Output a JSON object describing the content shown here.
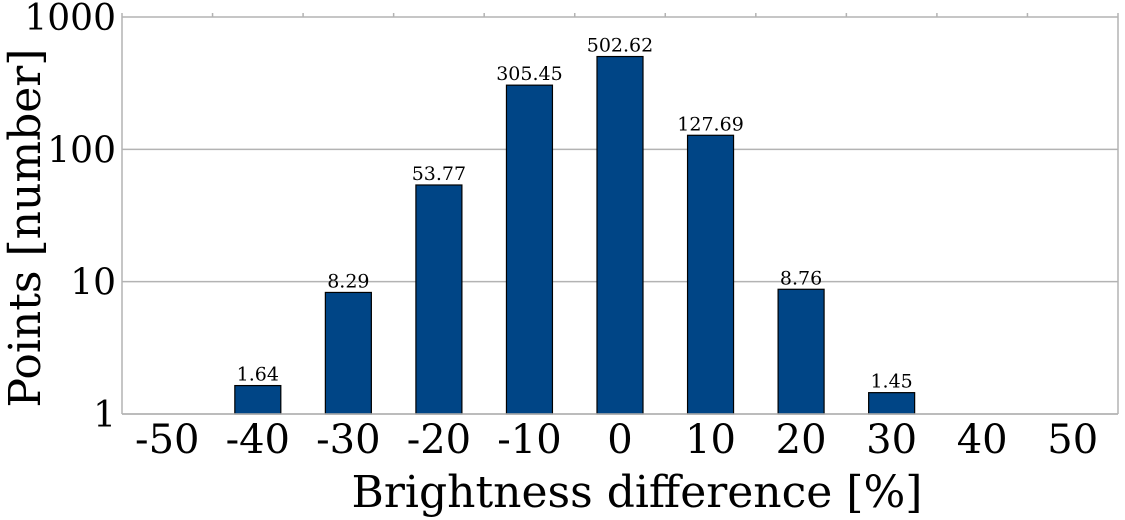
{
  "chart_data": {
    "type": "bar",
    "title": "",
    "xlabel": "Brightness difference [%]",
    "ylabel": "Points [number]",
    "yscale": "log",
    "ylim": [
      1,
      1000
    ],
    "y_ticks": [
      "1",
      "10",
      "100",
      "1000"
    ],
    "categories": [
      "-50",
      "-40",
      "-30",
      "-20",
      "-10",
      "0",
      "10",
      "20",
      "30",
      "40",
      "50"
    ],
    "values": [
      null,
      1.64,
      8.29,
      53.77,
      305.45,
      502.62,
      127.69,
      8.76,
      1.45,
      null,
      null
    ],
    "value_labels": [
      "",
      "1.64",
      "8.29",
      "53.77",
      "305.45",
      "502.62",
      "127.69",
      "8.76",
      "1.45",
      "",
      ""
    ],
    "grid": true,
    "legend": "none",
    "colors": {
      "bar": "#004586",
      "bar_edge": "#000000",
      "grid": "#b3b3b3",
      "text": "#000000"
    }
  }
}
